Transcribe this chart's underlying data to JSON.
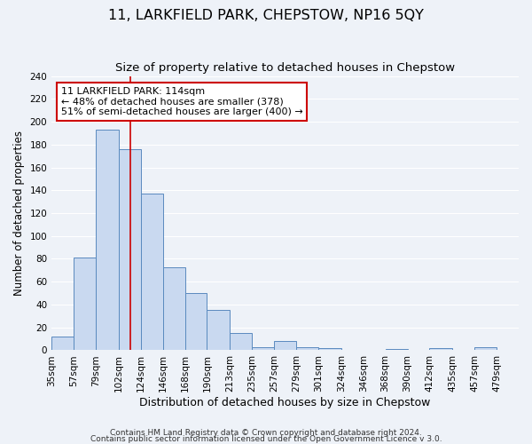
{
  "title": "11, LARKFIELD PARK, CHEPSTOW, NP16 5QY",
  "subtitle": "Size of property relative to detached houses in Chepstow",
  "xlabel": "Distribution of detached houses by size in Chepstow",
  "ylabel": "Number of detached properties",
  "footer_line1": "Contains HM Land Registry data © Crown copyright and database right 2024.",
  "footer_line2": "Contains public sector information licensed under the Open Government Licence v 3.0.",
  "bar_edges": [
    35,
    57,
    79,
    102,
    124,
    146,
    168,
    190,
    213,
    235,
    257,
    279,
    301,
    324,
    346,
    368,
    390,
    412,
    435,
    457,
    479,
    501
  ],
  "bar_heights": [
    12,
    81,
    193,
    176,
    137,
    73,
    50,
    35,
    15,
    3,
    8,
    3,
    2,
    0,
    0,
    1,
    0,
    2,
    0,
    3,
    0
  ],
  "bar_color": "#c9d9f0",
  "bar_edge_color": "#5a8abf",
  "property_size": 114,
  "vline_color": "#cc0000",
  "annotation_title": "11 LARKFIELD PARK: 114sqm",
  "annotation_line1": "← 48% of detached houses are smaller (378)",
  "annotation_line2": "51% of semi-detached houses are larger (400) →",
  "annotation_box_edgecolor": "#cc0000",
  "annotation_box_facecolor": "#ffffff",
  "ylim": [
    0,
    240
  ],
  "yticks": [
    0,
    20,
    40,
    60,
    80,
    100,
    120,
    140,
    160,
    180,
    200,
    220,
    240
  ],
  "tick_labels": [
    "35sqm",
    "57sqm",
    "79sqm",
    "102sqm",
    "124sqm",
    "146sqm",
    "168sqm",
    "190sqm",
    "213sqm",
    "235sqm",
    "257sqm",
    "279sqm",
    "301sqm",
    "324sqm",
    "346sqm",
    "368sqm",
    "390sqm",
    "412sqm",
    "435sqm",
    "457sqm",
    "479sqm"
  ],
  "background_color": "#eef2f8",
  "grid_color": "#ffffff",
  "title_fontsize": 11.5,
  "subtitle_fontsize": 9.5,
  "xlabel_fontsize": 9,
  "ylabel_fontsize": 8.5,
  "tick_fontsize": 7.5,
  "footer_fontsize": 6.5
}
